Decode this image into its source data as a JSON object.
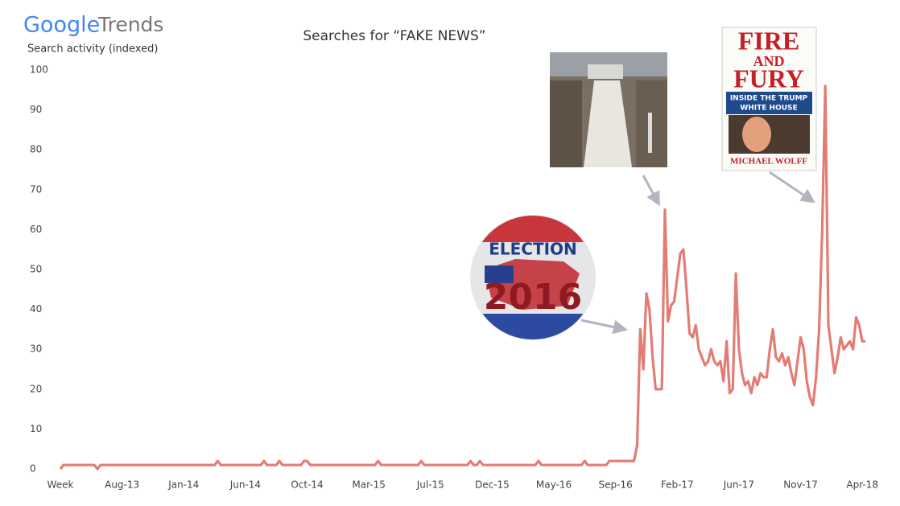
{
  "chart_data": {
    "type": "line",
    "brand": "Google",
    "product": "Trends",
    "title": "Searches for “FAKE NEWS”",
    "y_label": "Search activity (indexed)",
    "annotations": {
      "election_badge": [
        "ELECTION",
        "2016"
      ],
      "book_cover": [
        "FIRE",
        "AND",
        "FURY",
        "INSIDE THE TRUMP",
        "WHITE HOUSE",
        "MICHAEL WOLFF"
      ]
    },
    "color": "#e37c74",
    "ylim": [
      0,
      100
    ],
    "yticks": [
      0,
      10,
      20,
      30,
      40,
      50,
      60,
      70,
      80,
      90,
      100
    ],
    "grid": false,
    "categories": [
      "Week",
      null,
      null,
      null,
      null,
      null,
      null,
      null,
      null,
      null,
      null,
      null,
      null,
      null,
      null,
      null,
      null,
      null,
      null,
      null,
      "Aug-13",
      null,
      null,
      null,
      null,
      null,
      null,
      null,
      null,
      null,
      null,
      null,
      null,
      null,
      null,
      null,
      null,
      null,
      null,
      null,
      "Jan-14",
      null,
      null,
      null,
      null,
      null,
      null,
      null,
      null,
      null,
      null,
      null,
      null,
      null,
      null,
      null,
      null,
      null,
      null,
      null,
      "Jun-14",
      null,
      null,
      null,
      null,
      null,
      null,
      null,
      null,
      null,
      null,
      null,
      null,
      null,
      null,
      null,
      null,
      null,
      null,
      null,
      "Oct-14",
      null,
      null,
      null,
      null,
      null,
      null,
      null,
      null,
      null,
      null,
      null,
      null,
      null,
      null,
      null,
      null,
      null,
      null,
      null,
      "Mar-15",
      null,
      null,
      null,
      null,
      null,
      null,
      null,
      null,
      null,
      null,
      null,
      null,
      null,
      null,
      null,
      null,
      null,
      null,
      null,
      "Jul-15",
      null,
      null,
      null,
      null,
      null,
      null,
      null,
      null,
      null,
      null,
      null,
      null,
      null,
      null,
      null,
      null,
      null,
      null,
      null,
      "Dec-15",
      null,
      null,
      null,
      null,
      null,
      null,
      null,
      null,
      null,
      null,
      null,
      null,
      null,
      null,
      null,
      null,
      null,
      null,
      null,
      "May-16",
      null,
      null,
      null,
      null,
      null,
      null,
      null,
      null,
      null,
      null,
      null,
      null,
      null,
      null,
      null,
      null,
      null,
      null,
      null,
      "Sep-16",
      null,
      null,
      null,
      null,
      null,
      null,
      null,
      null,
      null,
      null,
      null,
      null,
      null,
      null,
      null,
      null,
      null,
      null,
      null,
      "Feb-17",
      null,
      null,
      null,
      null,
      null,
      null,
      null,
      null,
      null,
      null,
      null,
      null,
      null,
      null,
      null,
      null,
      null,
      null,
      null,
      "Jun-17",
      null,
      null,
      null,
      null,
      null,
      null,
      null,
      null,
      null,
      null,
      null,
      null,
      null,
      null,
      null,
      null,
      null,
      null,
      null,
      "Nov-17",
      null,
      null,
      null,
      null,
      null,
      null,
      null,
      null,
      null,
      null,
      null,
      null,
      null,
      null,
      null,
      null,
      null,
      null,
      null,
      "Apr-18",
      null
    ],
    "values": [
      0,
      1,
      1,
      1,
      1,
      1,
      1,
      1,
      1,
      1,
      1,
      1,
      0,
      1,
      1,
      1,
      1,
      1,
      1,
      1,
      1,
      1,
      1,
      1,
      1,
      1,
      1,
      1,
      1,
      1,
      1,
      1,
      1,
      1,
      1,
      1,
      1,
      1,
      1,
      1,
      1,
      1,
      1,
      1,
      1,
      1,
      1,
      1,
      1,
      1,
      1,
      2,
      1,
      1,
      1,
      1,
      1,
      1,
      1,
      1,
      1,
      1,
      1,
      1,
      1,
      1,
      2,
      1,
      1,
      1,
      1,
      2,
      1,
      1,
      1,
      1,
      1,
      1,
      1,
      2,
      2,
      1,
      1,
      1,
      1,
      1,
      1,
      1,
      1,
      1,
      1,
      1,
      1,
      1,
      1,
      1,
      1,
      1,
      1,
      1,
      1,
      1,
      1,
      2,
      1,
      1,
      1,
      1,
      1,
      1,
      1,
      1,
      1,
      1,
      1,
      1,
      1,
      2,
      1,
      1,
      1,
      1,
      1,
      1,
      1,
      1,
      1,
      1,
      1,
      1,
      1,
      1,
      1,
      2,
      1,
      1,
      2,
      1,
      1,
      1,
      1,
      1,
      1,
      1,
      1,
      1,
      1,
      1,
      1,
      1,
      1,
      1,
      1,
      1,
      1,
      2,
      1,
      1,
      1,
      1,
      1,
      1,
      1,
      1,
      1,
      1,
      1,
      1,
      1,
      1,
      2,
      1,
      1,
      1,
      1,
      1,
      1,
      1,
      2,
      2,
      2,
      2,
      2,
      2,
      2,
      2,
      2,
      6,
      35,
      25,
      44,
      40,
      28,
      20,
      20,
      20,
      65,
      37,
      41,
      42,
      48,
      54,
      55,
      45,
      34,
      33,
      36,
      30,
      28,
      26,
      27,
      30,
      27,
      26,
      27,
      22,
      32,
      19,
      20,
      49,
      30,
      24,
      21,
      22,
      19,
      23,
      21,
      24,
      23,
      23,
      30,
      35,
      28,
      27,
      29,
      26,
      28,
      24,
      21,
      27,
      33,
      30,
      22,
      18,
      16,
      23,
      35,
      60,
      96,
      36,
      30,
      24,
      28,
      33,
      30,
      31,
      32,
      30,
      38,
      36,
      32,
      32
    ]
  }
}
